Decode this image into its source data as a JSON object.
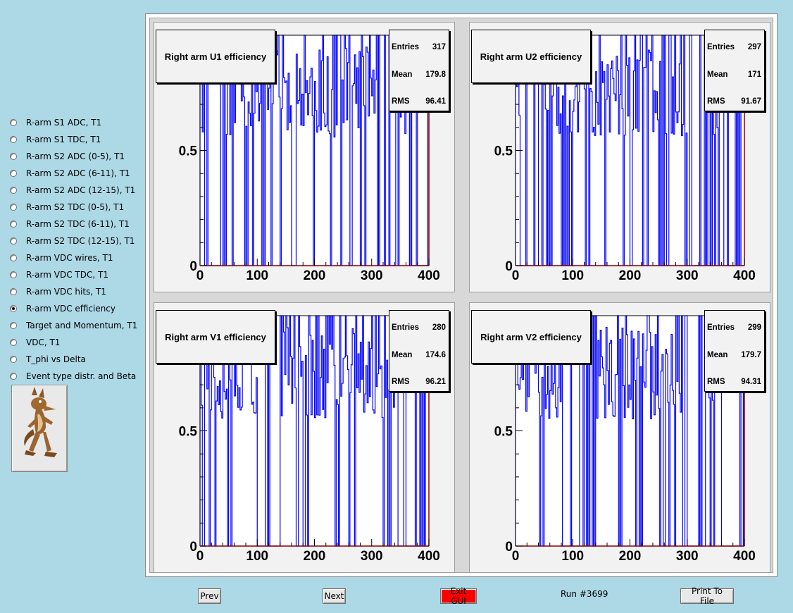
{
  "sidebar": {
    "items": [
      {
        "label": "R-arm S1 ADC, T1",
        "checked": false
      },
      {
        "label": "R-arm S1 TDC, T1",
        "checked": false
      },
      {
        "label": "R-arm S2 ADC (0-5), T1",
        "checked": false
      },
      {
        "label": "R-arm S2 ADC (6-11), T1",
        "checked": false
      },
      {
        "label": "R-arm S2 ADC (12-15), T1",
        "checked": false
      },
      {
        "label": "R-arm S2 TDC (0-5), T1",
        "checked": false
      },
      {
        "label": "R-arm S2 TDC (6-11), T1",
        "checked": false
      },
      {
        "label": "R-arm S2 TDC (12-15), T1",
        "checked": false
      },
      {
        "label": "R-arm VDC wires, T1",
        "checked": false
      },
      {
        "label": "R-arm VDC TDC, T1",
        "checked": false
      },
      {
        "label": "R-arm VDC hits, T1",
        "checked": false
      },
      {
        "label": "R-arm VDC efficiency",
        "checked": true
      },
      {
        "label": "Target and Momentum, T1",
        "checked": false
      },
      {
        "label": "VDC, T1",
        "checked": false
      },
      {
        "label": "T_phi vs Delta",
        "checked": false
      },
      {
        "label": "Event type distr. and Beta",
        "checked": false
      }
    ],
    "mascot_icon": "coyote-icon"
  },
  "stats_labels": {
    "entries": "Entries",
    "mean": "Mean",
    "rms": "RMS"
  },
  "plot_color": "#0000ff",
  "frame_color": "#8b0000",
  "chart_data": [
    {
      "type": "line",
      "title": "Right arm U1 efficiency",
      "stats": {
        "entries": "317",
        "mean": "179.8",
        "rms": "96.41"
      },
      "xlim": [
        0,
        400
      ],
      "ylim": [
        0,
        1
      ],
      "xticks": [
        "0",
        "100",
        "200",
        "300",
        "400"
      ],
      "yticks": [
        "0",
        "0.5"
      ],
      "seed": 11,
      "zero_runs": [
        [
          10,
          38
        ],
        [
          310,
          342
        ],
        [
          365,
          400
        ]
      ]
    },
    {
      "type": "line",
      "title": "Right arm U2 efficiency",
      "stats": {
        "entries": "297",
        "mean": "171",
        "rms": "91.67"
      },
      "xlim": [
        0,
        400
      ],
      "ylim": [
        0,
        1
      ],
      "xticks": [
        "0",
        "100",
        "200",
        "300",
        "400"
      ],
      "yticks": [
        "0",
        "0.5"
      ],
      "seed": 23,
      "zero_runs": [
        [
          8,
          40
        ],
        [
          300,
          340
        ],
        [
          360,
          400
        ]
      ]
    },
    {
      "type": "line",
      "title": "Right arm V1 efficiency",
      "stats": {
        "entries": "280",
        "mean": "174.6",
        "rms": "96.21"
      },
      "xlim": [
        0,
        400
      ],
      "ylim": [
        0,
        1
      ],
      "xticks": [
        "0",
        "100",
        "200",
        "300",
        "400"
      ],
      "yticks": [
        "0",
        "0.5"
      ],
      "seed": 37,
      "zero_runs": [
        [
          100,
          140
        ],
        [
          345,
          400
        ]
      ]
    },
    {
      "type": "line",
      "title": "Right arm V2 efficiency",
      "stats": {
        "entries": "299",
        "mean": "179.7",
        "rms": "94.31"
      },
      "xlim": [
        0,
        400
      ],
      "ylim": [
        0,
        1
      ],
      "xticks": [
        "0",
        "100",
        "200",
        "300",
        "400"
      ],
      "yticks": [
        "0",
        "0.5"
      ],
      "seed": 51,
      "zero_runs": [
        [
          80,
          140
        ],
        [
          290,
          330
        ],
        [
          360,
          400
        ]
      ]
    }
  ],
  "buttons": {
    "prev": "Prev",
    "next": "Next",
    "exit": "Exit GUI",
    "print": "Print To File"
  },
  "run_label": "Run #3699"
}
